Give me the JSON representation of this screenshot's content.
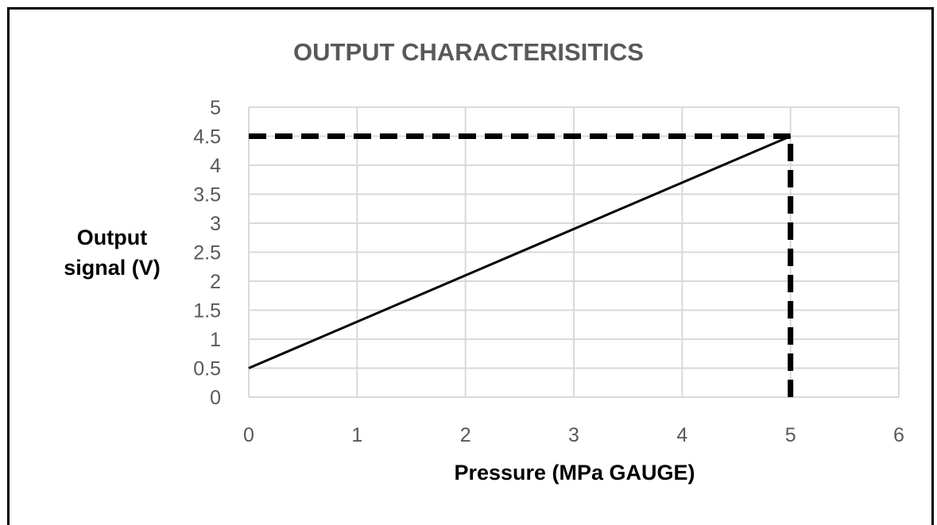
{
  "chart_data": {
    "type": "line",
    "title": "OUTPUT CHARACTERISITICS",
    "xlabel": "Pressure (MPa GAUGE)",
    "ylabel_lines": [
      "Output",
      "signal (V)"
    ],
    "xlim": [
      0,
      6
    ],
    "ylim": [
      0,
      5
    ],
    "x_ticks": [
      "0",
      "1",
      "2",
      "3",
      "4",
      "5",
      "6"
    ],
    "y_ticks": [
      "0",
      "0.5",
      "1",
      "1.5",
      "2",
      "2.5",
      "3",
      "3.5",
      "4",
      "4.5",
      "5"
    ],
    "grid": true,
    "series": [
      {
        "x": [
          0,
          5
        ],
        "y": [
          0.5,
          4.5
        ],
        "style": "solid",
        "color": "#000000"
      }
    ],
    "reference_lines": [
      {
        "x": [
          0,
          5
        ],
        "y": [
          4.5,
          4.5
        ],
        "style": "dashed",
        "color": "#000000"
      },
      {
        "x": [
          5,
          5
        ],
        "y": [
          0,
          4.5
        ],
        "style": "dashed",
        "color": "#000000"
      }
    ],
    "colors": {
      "grid": "#d9d9d9",
      "tick_text": "#595959",
      "title": "#595959"
    }
  }
}
